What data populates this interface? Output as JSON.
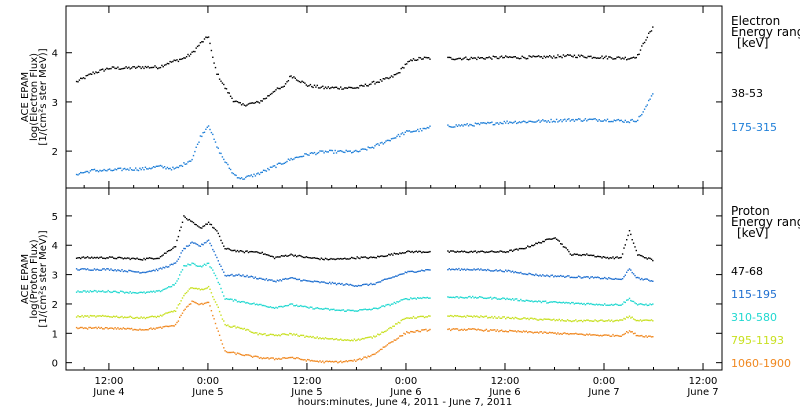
{
  "xaxis": {
    "title": "hours:minutes, June  4, 2011 - June  7, 2011",
    "ticks": [
      {
        "t": 12,
        "time": "12:00",
        "date": "June 4"
      },
      {
        "t": 24,
        "time": "0:00",
        "date": "June 5"
      },
      {
        "t": 36,
        "time": "12:00",
        "date": "June 5"
      },
      {
        "t": 48,
        "time": "0:00",
        "date": "June 6"
      },
      {
        "t": 60,
        "time": "12:00",
        "date": "June 6"
      },
      {
        "t": 72,
        "time": "0:00",
        "date": "June 7"
      },
      {
        "t": 84,
        "time": "12:00",
        "date": "June 7"
      }
    ],
    "range": [
      6.8,
      86.3
    ]
  },
  "chart_data": [
    {
      "type": "scatter",
      "ylabel_lines": [
        "ACE EPAM",
        "log(Electron Flux)",
        "[1/(cm²s ster MeV)]"
      ],
      "ylim": [
        1.25,
        4.95
      ],
      "yticks": [
        2,
        3,
        4
      ],
      "legend_title_lines": [
        "Electron",
        "Energy range",
        "[keV]"
      ],
      "series": [
        {
          "name": "38-53",
          "color": "#000000",
          "points": [
            [
              8,
              3.42
            ],
            [
              10,
              3.6
            ],
            [
              12,
              3.7
            ],
            [
              14,
              3.7
            ],
            [
              16,
              3.72
            ],
            [
              18,
              3.72
            ],
            [
              19,
              3.8
            ],
            [
              20,
              3.85
            ],
            [
              21,
              3.9
            ],
            [
              22,
              4.0
            ],
            [
              23,
              4.2
            ],
            [
              24,
              4.35
            ],
            [
              24.5,
              3.9
            ],
            [
              25,
              3.6
            ],
            [
              26,
              3.3
            ],
            [
              27,
              3.05
            ],
            [
              28,
              2.95
            ],
            [
              30,
              3.0
            ],
            [
              31,
              3.1
            ],
            [
              32,
              3.25
            ],
            [
              33,
              3.3
            ],
            [
              34,
              3.55
            ],
            [
              35,
              3.45
            ],
            [
              36,
              3.35
            ],
            [
              38,
              3.3
            ],
            [
              40,
              3.3
            ],
            [
              42,
              3.3
            ],
            [
              44,
              3.4
            ],
            [
              46,
              3.5
            ],
            [
              47,
              3.6
            ],
            [
              48,
              3.8
            ],
            [
              49,
              3.88
            ],
            [
              50,
              3.9
            ],
            [
              51,
              3.9
            ]
          ]
        },
        {
          "name": "38-53",
          "color": "#000000",
          "points": [
            [
              53,
              3.9
            ],
            [
              56,
              3.9
            ],
            [
              60,
              3.92
            ],
            [
              64,
              3.92
            ],
            [
              68,
              3.95
            ],
            [
              72,
              3.92
            ],
            [
              75,
              3.9
            ],
            [
              76,
              3.95
            ],
            [
              77,
              4.3
            ],
            [
              78,
              4.55
            ]
          ]
        },
        {
          "name": "175-315",
          "color": "#1f7fd8",
          "points": [
            [
              8,
              1.55
            ],
            [
              10,
              1.62
            ],
            [
              12,
              1.62
            ],
            [
              14,
              1.65
            ],
            [
              16,
              1.65
            ],
            [
              18,
              1.7
            ],
            [
              20,
              1.65
            ],
            [
              21,
              1.75
            ],
            [
              22,
              1.85
            ],
            [
              23,
              2.3
            ],
            [
              24,
              2.55
            ],
            [
              25,
              2.1
            ],
            [
              26,
              1.8
            ],
            [
              27,
              1.55
            ],
            [
              28,
              1.45
            ],
            [
              30,
              1.55
            ],
            [
              32,
              1.7
            ],
            [
              34,
              1.85
            ],
            [
              36,
              1.95
            ],
            [
              38,
              2.0
            ],
            [
              40,
              2.0
            ],
            [
              42,
              2.0
            ],
            [
              44,
              2.1
            ],
            [
              46,
              2.25
            ],
            [
              48,
              2.4
            ],
            [
              50,
              2.45
            ],
            [
              51,
              2.5
            ]
          ]
        },
        {
          "name": "175-315",
          "color": "#1f7fd8",
          "points": [
            [
              53,
              2.52
            ],
            [
              56,
              2.55
            ],
            [
              60,
              2.6
            ],
            [
              64,
              2.62
            ],
            [
              68,
              2.65
            ],
            [
              72,
              2.65
            ],
            [
              75,
              2.62
            ],
            [
              76,
              2.65
            ],
            [
              77,
              2.9
            ],
            [
              78,
              3.25
            ]
          ]
        }
      ]
    },
    {
      "type": "scatter",
      "ylabel_lines": [
        "ACE EPAM",
        "log(Proton Flux)",
        "[1/(cm²s ster MeV)]"
      ],
      "ylim": [
        -0.25,
        5.95
      ],
      "yticks": [
        0,
        1,
        2,
        3,
        4,
        5
      ],
      "legend_title_lines": [
        "Proton",
        "Energy range",
        "[keV]"
      ],
      "series": [
        {
          "name": "47-68",
          "color": "#000000",
          "points": [
            [
              8,
              3.6
            ],
            [
              12,
              3.6
            ],
            [
              16,
              3.55
            ],
            [
              18,
              3.6
            ],
            [
              20,
              4.0
            ],
            [
              21,
              5.0
            ],
            [
              22,
              4.8
            ],
            [
              23,
              4.6
            ],
            [
              24,
              4.8
            ],
            [
              25,
              4.5
            ],
            [
              26,
              3.9
            ],
            [
              28,
              3.8
            ],
            [
              30,
              3.8
            ],
            [
              32,
              3.6
            ],
            [
              34,
              3.7
            ],
            [
              36,
              3.6
            ],
            [
              38,
              3.55
            ],
            [
              40,
              3.55
            ],
            [
              42,
              3.6
            ],
            [
              44,
              3.6
            ],
            [
              46,
              3.7
            ],
            [
              48,
              3.8
            ],
            [
              51,
              3.8
            ]
          ]
        },
        {
          "name": "47-68",
          "color": "#000000",
          "points": [
            [
              53,
              3.8
            ],
            [
              56,
              3.8
            ],
            [
              60,
              3.8
            ],
            [
              62,
              3.9
            ],
            [
              64,
              4.1
            ],
            [
              66,
              4.3
            ],
            [
              68,
              3.7
            ],
            [
              70,
              3.7
            ],
            [
              72,
              3.6
            ],
            [
              74,
              3.6
            ],
            [
              75,
              4.5
            ],
            [
              76,
              3.7
            ],
            [
              78,
              3.5
            ]
          ]
        },
        {
          "name": "115-195",
          "color": "#1f6fd0",
          "points": [
            [
              8,
              3.2
            ],
            [
              12,
              3.2
            ],
            [
              16,
              3.1
            ],
            [
              18,
              3.2
            ],
            [
              20,
              3.4
            ],
            [
              21,
              3.9
            ],
            [
              22,
              4.1
            ],
            [
              23,
              4.0
            ],
            [
              24,
              4.2
            ],
            [
              25,
              3.6
            ],
            [
              26,
              3.0
            ],
            [
              28,
              3.0
            ],
            [
              30,
              2.9
            ],
            [
              32,
              2.8
            ],
            [
              34,
              2.9
            ],
            [
              36,
              2.8
            ],
            [
              38,
              2.75
            ],
            [
              40,
              2.7
            ],
            [
              42,
              2.65
            ],
            [
              44,
              2.7
            ],
            [
              46,
              2.9
            ],
            [
              48,
              3.1
            ],
            [
              51,
              3.2
            ]
          ]
        },
        {
          "name": "115-195",
          "color": "#1f6fd0",
          "points": [
            [
              53,
              3.2
            ],
            [
              56,
              3.2
            ],
            [
              60,
              3.15
            ],
            [
              64,
              3.0
            ],
            [
              68,
              2.95
            ],
            [
              72,
              2.9
            ],
            [
              74,
              2.85
            ],
            [
              75,
              3.2
            ],
            [
              76,
              2.9
            ],
            [
              78,
              2.8
            ]
          ]
        },
        {
          "name": "310-580",
          "color": "#20d8d0",
          "points": [
            [
              8,
              2.45
            ],
            [
              12,
              2.45
            ],
            [
              16,
              2.4
            ],
            [
              18,
              2.45
            ],
            [
              20,
              2.7
            ],
            [
              21,
              3.3
            ],
            [
              22,
              3.4
            ],
            [
              23,
              3.3
            ],
            [
              24,
              3.4
            ],
            [
              25,
              2.9
            ],
            [
              26,
              2.2
            ],
            [
              28,
              2.1
            ],
            [
              30,
              2.0
            ],
            [
              32,
              1.9
            ],
            [
              34,
              2.0
            ],
            [
              36,
              1.9
            ],
            [
              38,
              1.85
            ],
            [
              40,
              1.8
            ],
            [
              42,
              1.8
            ],
            [
              44,
              1.85
            ],
            [
              46,
              2.0
            ],
            [
              48,
              2.2
            ],
            [
              51,
              2.25
            ]
          ]
        },
        {
          "name": "310-580",
          "color": "#20d8d0",
          "points": [
            [
              53,
              2.25
            ],
            [
              56,
              2.25
            ],
            [
              60,
              2.2
            ],
            [
              64,
              2.1
            ],
            [
              68,
              2.05
            ],
            [
              72,
              2.0
            ],
            [
              74,
              2.0
            ],
            [
              75,
              2.2
            ],
            [
              76,
              2.0
            ],
            [
              78,
              2.0
            ]
          ]
        },
        {
          "name": "795-1193",
          "color": "#c8e020",
          "points": [
            [
              8,
              1.6
            ],
            [
              12,
              1.6
            ],
            [
              16,
              1.55
            ],
            [
              18,
              1.6
            ],
            [
              20,
              1.8
            ],
            [
              21,
              2.3
            ],
            [
              22,
              2.6
            ],
            [
              23,
              2.5
            ],
            [
              24,
              2.6
            ],
            [
              25,
              2.0
            ],
            [
              26,
              1.3
            ],
            [
              28,
              1.2
            ],
            [
              30,
              1.0
            ],
            [
              32,
              0.95
            ],
            [
              34,
              1.0
            ],
            [
              36,
              0.9
            ],
            [
              38,
              0.85
            ],
            [
              40,
              0.8
            ],
            [
              42,
              0.8
            ],
            [
              44,
              0.9
            ],
            [
              46,
              1.2
            ],
            [
              48,
              1.55
            ],
            [
              51,
              1.6
            ]
          ]
        },
        {
          "name": "795-1193",
          "color": "#c8e020",
          "points": [
            [
              53,
              1.6
            ],
            [
              56,
              1.6
            ],
            [
              60,
              1.55
            ],
            [
              64,
              1.5
            ],
            [
              68,
              1.45
            ],
            [
              72,
              1.45
            ],
            [
              74,
              1.45
            ],
            [
              75,
              1.6
            ],
            [
              76,
              1.45
            ],
            [
              78,
              1.45
            ]
          ]
        },
        {
          "name": "1060-1900",
          "color": "#f08820",
          "points": [
            [
              8,
              1.2
            ],
            [
              12,
              1.2
            ],
            [
              16,
              1.15
            ],
            [
              18,
              1.2
            ],
            [
              20,
              1.3
            ],
            [
              21,
              1.8
            ],
            [
              22,
              2.1
            ],
            [
              23,
              2.0
            ],
            [
              24,
              2.1
            ],
            [
              25,
              1.2
            ],
            [
              26,
              0.4
            ],
            [
              28,
              0.3
            ],
            [
              30,
              0.2
            ],
            [
              32,
              0.15
            ],
            [
              34,
              0.2
            ],
            [
              36,
              0.1
            ],
            [
              38,
              0.05
            ],
            [
              40,
              0.05
            ],
            [
              42,
              0.1
            ],
            [
              44,
              0.3
            ],
            [
              46,
              0.7
            ],
            [
              48,
              1.05
            ],
            [
              51,
              1.15
            ]
          ]
        },
        {
          "name": "1060-1900",
          "color": "#f08820",
          "points": [
            [
              53,
              1.15
            ],
            [
              56,
              1.15
            ],
            [
              60,
              1.1
            ],
            [
              64,
              1.05
            ],
            [
              68,
              1.0
            ],
            [
              72,
              0.95
            ],
            [
              74,
              0.95
            ],
            [
              75,
              1.1
            ],
            [
              76,
              0.95
            ],
            [
              78,
              0.9
            ]
          ]
        }
      ]
    }
  ]
}
